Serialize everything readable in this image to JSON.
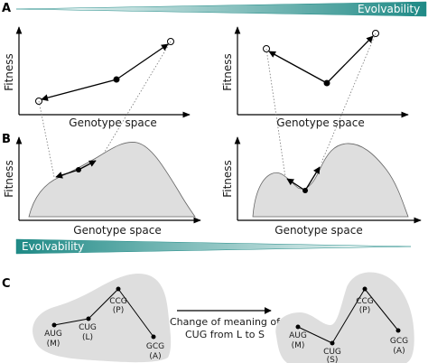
{
  "panels": {
    "a": "A",
    "b": "B",
    "c": "C"
  },
  "evolvability": {
    "top": "Evolvability",
    "bottom": "Evolvability"
  },
  "axes": {
    "a_left": {
      "x": "Genotype space",
      "y": "Fitness"
    },
    "a_right": {
      "x": "Genotype space",
      "y": "Fitness"
    },
    "b_left": {
      "x": "Genotype space",
      "y": "Fitness"
    },
    "b_right": {
      "x": "Genotype space",
      "y": "Fitness"
    }
  },
  "transition": {
    "line1": "Change of meaning of",
    "line2": "CUG from L to S"
  },
  "codons_before": [
    {
      "codon": "AUG",
      "aa": "(M)"
    },
    {
      "codon": "CUG",
      "aa": "(L)"
    },
    {
      "codon": "CCG",
      "aa": "(P)"
    },
    {
      "codon": "GCG",
      "aa": "(A)"
    }
  ],
  "codons_after": [
    {
      "codon": "AUG",
      "aa": "(M)"
    },
    {
      "codon": "CUG",
      "aa": "(S)"
    },
    {
      "codon": "CCG",
      "aa": "(P)"
    },
    {
      "codon": "GCG",
      "aa": "(A)"
    }
  ],
  "colors": {
    "gradient": "#1f8a86",
    "landscape": "#dedede",
    "landscape_stroke": "#666666"
  }
}
